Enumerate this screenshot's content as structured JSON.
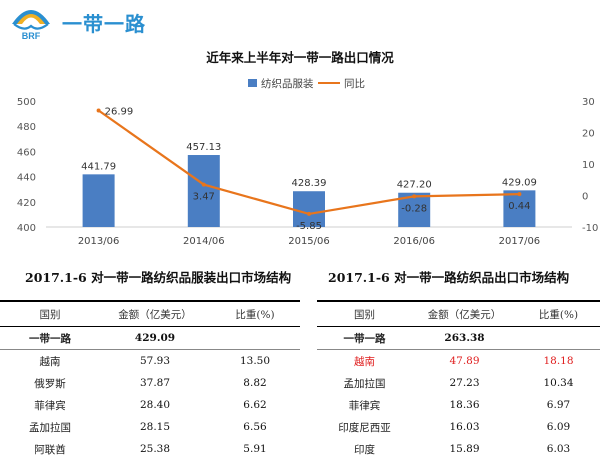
{
  "header": {
    "brand_title": "一带一路",
    "logo_text": "BRF"
  },
  "chart_data": {
    "type": "bar+line",
    "title": "近年来上半年对一带一路出口情况",
    "categories": [
      "2013/06",
      "2014/06",
      "2015/06",
      "2016/06",
      "2017/06"
    ],
    "series": [
      {
        "name": "纺织品服装",
        "type": "bar",
        "axis": "left",
        "color": "#4a7ec3",
        "values": [
          441.79,
          457.13,
          428.39,
          427.2,
          429.09
        ],
        "labels": [
          "441.79",
          "457.13",
          "428.39",
          "427.20",
          "429.09"
        ]
      },
      {
        "name": "同比",
        "type": "line",
        "axis": "right",
        "color": "#e8751c",
        "values": [
          26.99,
          3.47,
          -5.85,
          -0.28,
          0.44
        ],
        "labels": [
          "26.99",
          "3.47",
          "-5.85",
          "-0.28",
          "0.44"
        ]
      }
    ],
    "y_left": {
      "min": 400,
      "max": 500,
      "ticks": [
        "400",
        "420",
        "440",
        "460",
        "480",
        "500"
      ]
    },
    "y_right": {
      "min": -10,
      "max": 30,
      "ticks": [
        "-10",
        "0",
        "10",
        "20",
        "30"
      ]
    },
    "legend_position": "top-center",
    "grid": false
  },
  "table_left": {
    "title": "2017.1-6 对一带一路纺织品服装出口市场结构",
    "headers": [
      "国别",
      "金额（亿美元）",
      "比重(%)"
    ],
    "total": {
      "name": "一带一路",
      "amount": "429.09",
      "share": ""
    },
    "rows": [
      {
        "name": "越南",
        "amount": "57.93",
        "share": "13.50"
      },
      {
        "name": "俄罗斯",
        "amount": "37.87",
        "share": "8.82"
      },
      {
        "name": "菲律宾",
        "amount": "28.40",
        "share": "6.62"
      },
      {
        "name": "孟加拉国",
        "amount": "28.15",
        "share": "6.56"
      },
      {
        "name": "阿联酋",
        "amount": "25.38",
        "share": "5.91"
      }
    ]
  },
  "table_right": {
    "title": "2017.1-6 对一带一路纺织品出口市场结构",
    "headers": [
      "国别",
      "金额（亿美元）",
      "比重(%)"
    ],
    "total": {
      "name": "一带一路",
      "amount": "263.38",
      "share": ""
    },
    "rows": [
      {
        "name": "越南",
        "amount": "47.89",
        "share": "18.18",
        "highlight": "#e02020"
      },
      {
        "name": "孟加拉国",
        "amount": "27.23",
        "share": "10.34"
      },
      {
        "name": "菲律宾",
        "amount": "18.36",
        "share": "6.97"
      },
      {
        "name": "印度尼西亚",
        "amount": "16.03",
        "share": "6.09"
      },
      {
        "name": "印度",
        "amount": "15.89",
        "share": "6.03"
      }
    ]
  }
}
